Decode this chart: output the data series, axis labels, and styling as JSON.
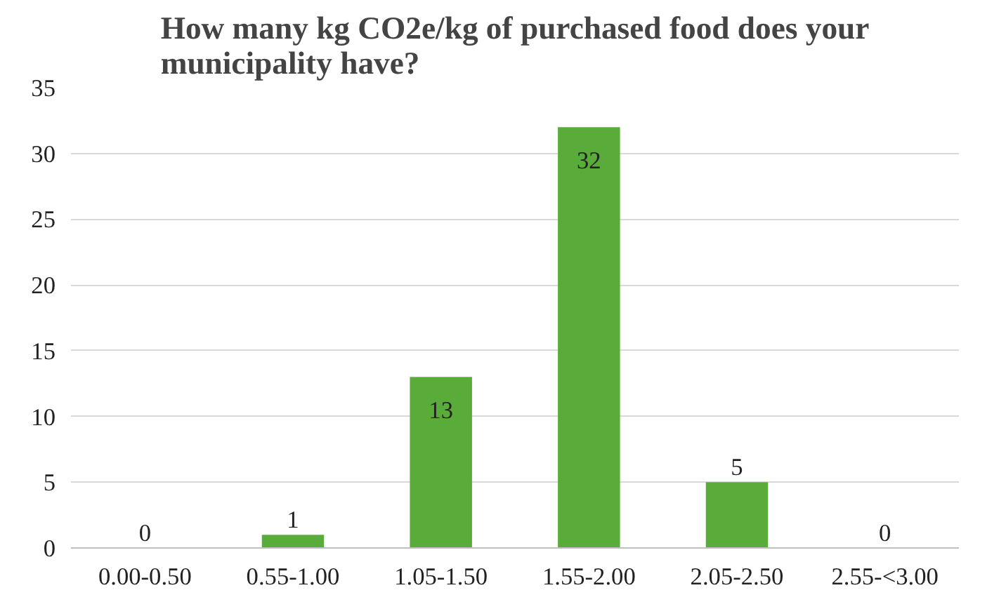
{
  "chart_data": {
    "type": "bar",
    "title": "How many kg CO2e/kg of purchased food does your\nmunicipality have?",
    "categories": [
      "0.00-0.50",
      "0.55-1.00",
      "1.05-1.50",
      "1.55-2.00",
      "2.05-2.50",
      "2.55-<3.00"
    ],
    "values": [
      0,
      1,
      13,
      32,
      5,
      0
    ],
    "color": "#5aac3a",
    "ylim": [
      0,
      35
    ],
    "yticks": [
      0,
      5,
      10,
      15,
      20,
      25,
      30,
      35
    ],
    "grid": "y",
    "data_labels": true
  }
}
